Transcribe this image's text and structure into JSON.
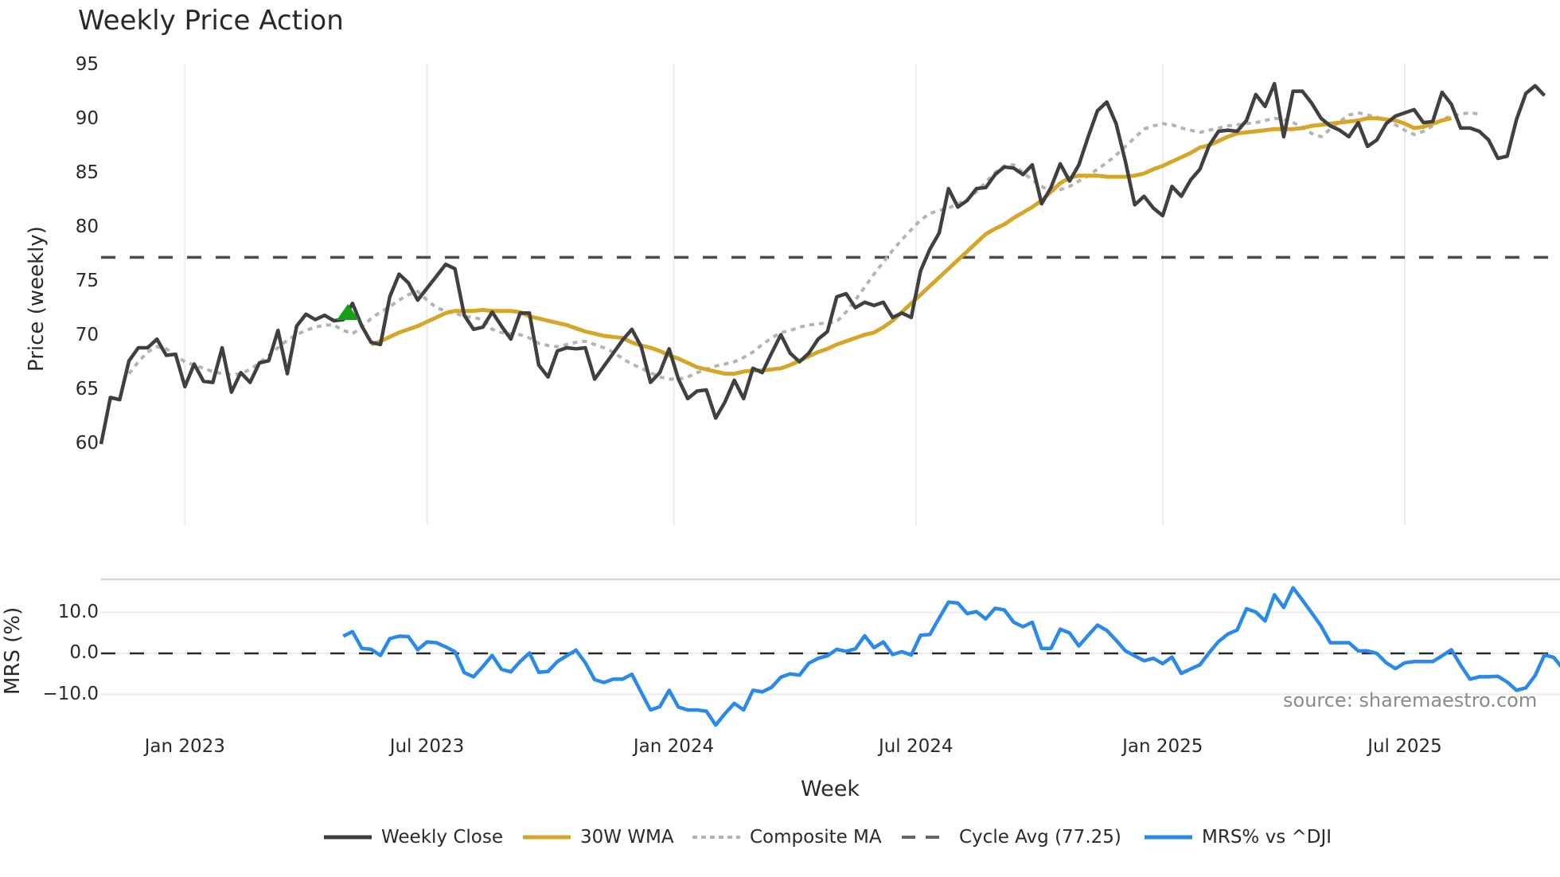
{
  "title": "Weekly Price Action",
  "source": "source: sharemaestro.com",
  "colors": {
    "weekly_close": "#404040",
    "wma": "#d4a62a",
    "composite": "#b4b4b4",
    "cycle_avg": "#4a4a4a",
    "mrs": "#2a8ae6",
    "signal": "#14a014",
    "grid": "#ececec"
  },
  "legend": [
    {
      "label": "Weekly Close",
      "style": "solid",
      "color": "#404040"
    },
    {
      "label": "30W WMA",
      "style": "solid",
      "color": "#d4a62a"
    },
    {
      "label": "Composite MA",
      "style": "dotted",
      "color": "#b4b4b4"
    },
    {
      "label": "Cycle Avg (77.25)",
      "style": "dashed",
      "color": "#4a4a4a"
    },
    {
      "label": "MRS% vs ^DJI",
      "style": "solid",
      "color": "#2a8ae6"
    }
  ],
  "chart_data": [
    {
      "type": "line",
      "title": "Weekly Price Action",
      "xlabel": "Week",
      "ylabel": "Price (weekly)",
      "ylim": [
        58.5,
        95
      ],
      "yticks": [
        95,
        90,
        85,
        80,
        75,
        70,
        65,
        60
      ],
      "xticks": [
        "Jan 2023",
        "Jul 2023",
        "Jan 2024",
        "Jul 2024",
        "Jan 2025",
        "Jul 2025"
      ],
      "xtick_index": [
        9,
        35,
        61.5,
        87.5,
        114,
        140
      ],
      "grid": "vertical",
      "horizontal_line": {
        "name": "Cycle Avg (77.25)",
        "value": 77.25
      },
      "signal_markers": [
        {
          "type": "buy-triangle",
          "index": 26.5,
          "value": 72.2
        }
      ],
      "series": [
        {
          "name": "Weekly Close",
          "start_index": 0,
          "values": [
            60.0,
            64.3,
            64.1,
            67.7,
            68.9,
            68.9,
            69.7,
            68.2,
            68.3,
            65.3,
            67.4,
            65.8,
            65.7,
            68.9,
            64.8,
            66.6,
            65.7,
            67.5,
            67.7,
            70.5,
            66.5,
            70.9,
            72.0,
            71.5,
            71.9,
            71.4,
            71.5,
            73.0,
            70.9,
            69.4,
            69.2,
            73.6,
            75.7,
            74.9,
            73.3,
            74.4,
            75.5,
            76.6,
            76.2,
            71.9,
            70.6,
            70.8,
            72.2,
            70.9,
            69.7,
            72.1,
            72.1,
            67.3,
            66.2,
            68.6,
            68.9,
            68.8,
            68.9,
            66.0,
            67.2,
            68.4,
            69.6,
            70.6,
            69.0,
            65.7,
            66.6,
            68.8,
            66.0,
            64.2,
            64.9,
            65.0,
            62.4,
            63.9,
            65.9,
            64.2,
            67.0,
            66.6,
            68.4,
            70.1,
            68.4,
            67.6,
            68.4,
            69.7,
            70.4,
            73.6,
            73.9,
            72.6,
            73.1,
            72.8,
            73.1,
            71.7,
            72.1,
            71.7,
            76.0,
            78.0,
            79.5,
            83.6,
            81.9,
            82.5,
            83.6,
            83.7,
            84.9,
            85.6,
            85.5,
            84.9,
            85.8,
            82.2,
            83.7,
            85.9,
            84.3,
            85.8,
            88.4,
            90.8,
            91.6,
            89.6,
            86.1,
            82.1,
            82.9,
            81.8,
            81.1,
            83.8,
            82.9,
            84.4,
            85.4,
            87.6,
            88.9,
            89.0,
            88.9,
            89.9,
            92.3,
            91.2,
            93.3,
            88.4,
            92.6,
            92.6,
            91.5,
            90.1,
            89.4,
            89.0,
            88.4,
            89.7,
            87.5,
            88.1,
            89.6,
            90.3,
            90.6,
            90.9,
            89.7,
            89.8,
            92.5,
            91.4,
            89.2,
            89.2,
            88.9,
            88.1,
            86.4,
            86.6,
            90.0,
            92.4,
            93.1,
            92.2
          ]
        },
        {
          "name": "30W WMA",
          "start_index": 29,
          "values": [
            69.2,
            69.5,
            69.9,
            70.3,
            70.6,
            70.9,
            71.3,
            71.7,
            72.1,
            72.3,
            72.3,
            72.3,
            72.4,
            72.3,
            72.3,
            72.3,
            72.2,
            71.8,
            71.6,
            71.4,
            71.2,
            71.0,
            70.7,
            70.4,
            70.2,
            70.0,
            69.9,
            69.8,
            69.4,
            69.1,
            68.9,
            68.6,
            68.2,
            67.9,
            67.5,
            67.1,
            66.9,
            66.7,
            66.5,
            66.5,
            66.7,
            66.8,
            66.8,
            66.9,
            67.0,
            67.3,
            67.7,
            68.1,
            68.5,
            68.8,
            69.2,
            69.5,
            69.8,
            70.1,
            70.3,
            70.8,
            71.4,
            72.2,
            73.0,
            73.8,
            74.6,
            75.4,
            76.2,
            77.0,
            77.8,
            78.6,
            79.4,
            79.9,
            80.3,
            80.9,
            81.4,
            81.9,
            82.5,
            83.3,
            84.1,
            84.6,
            84.8,
            84.8,
            84.8,
            84.7,
            84.7,
            84.7,
            84.8,
            85.0,
            85.4,
            85.7,
            86.1,
            86.5,
            86.9,
            87.4,
            87.6,
            88.0,
            88.4,
            88.7,
            88.8,
            88.9,
            89.0,
            89.1,
            89.1,
            89.1,
            89.2,
            89.4,
            89.5,
            89.6,
            89.7,
            89.8,
            89.9,
            90.1,
            90.1,
            90.0,
            89.9,
            89.6,
            89.2,
            89.3,
            89.6,
            89.9,
            90.1
          ]
        },
        {
          "name": "Composite MA",
          "start_index": 3,
          "values": [
            66.5,
            67.6,
            68.5,
            69.0,
            68.8,
            68.2,
            67.6,
            67.3,
            67.0,
            66.7,
            66.5,
            66.4,
            66.5,
            66.9,
            67.5,
            68.2,
            68.9,
            69.6,
            70.1,
            70.5,
            70.8,
            71.0,
            71.0,
            70.5,
            70.2,
            70.8,
            71.6,
            72.2,
            72.7,
            73.3,
            73.8,
            74.1,
            73.3,
            72.6,
            72.3,
            72.1,
            71.8,
            71.7,
            71.5,
            70.6,
            70.3,
            70.2,
            70.1,
            69.8,
            69.3,
            69.1,
            69.0,
            69.2,
            69.4,
            69.5,
            69.2,
            68.9,
            68.5,
            67.9,
            67.4,
            67.0,
            66.6,
            66.2,
            66.0,
            66.0,
            66.2,
            66.6,
            66.9,
            67.2,
            67.4,
            67.6,
            68.0,
            68.5,
            69.2,
            69.8,
            70.3,
            70.5,
            70.8,
            71.0,
            71.1,
            71.2,
            71.3,
            72.2,
            73.3,
            74.5,
            75.7,
            76.8,
            77.9,
            78.9,
            79.8,
            80.7,
            81.3,
            81.6,
            81.8,
            82.2,
            82.6,
            83.3,
            84.2,
            85.1,
            85.7,
            85.8,
            85.1,
            84.4,
            83.8,
            83.4,
            83.5,
            83.8,
            84.3,
            84.8,
            85.4,
            86.0,
            86.7,
            87.5,
            88.3,
            89.1,
            89.4,
            89.6,
            89.5,
            89.2,
            89.0,
            88.8,
            89.0,
            89.2,
            89.4,
            89.5,
            89.6,
            89.7,
            89.9,
            90.1,
            90.0,
            89.7,
            89.3,
            88.7,
            88.4,
            89.1,
            89.8,
            90.4,
            90.6,
            90.4,
            90.2,
            89.9,
            89.5,
            89.0,
            88.6,
            88.9,
            89.4,
            90.0,
            90.3,
            90.5,
            90.6,
            90.5
          ]
        }
      ]
    },
    {
      "type": "line",
      "ylabel": "MRS (%)",
      "ylim": [
        -19,
        22
      ],
      "yticks": [
        "10.0",
        "0.0",
        "−10.0"
      ],
      "horizontal_line": {
        "name": "zero",
        "value": 0
      },
      "series": [
        {
          "name": "MRS% vs ^DJI",
          "start_index": 26,
          "values": [
            4.2,
            5.3,
            1.2,
            1.0,
            -0.5,
            3.6,
            4.2,
            4.1,
            0.9,
            2.8,
            2.6,
            1.6,
            0.4,
            -4.7,
            -5.7,
            -3.2,
            -0.5,
            -3.9,
            -4.5,
            -2.0,
            0.1,
            -4.6,
            -4.4,
            -2.0,
            -0.6,
            0.8,
            -2.3,
            -6.4,
            -7.1,
            -6.3,
            -6.3,
            -5.1,
            -9.5,
            -13.8,
            -13.0,
            -9.0,
            -13.1,
            -13.8,
            -13.8,
            -14.1,
            -17.5,
            -14.7,
            -12.2,
            -13.8,
            -9.0,
            -9.4,
            -8.3,
            -5.8,
            -5.0,
            -5.3,
            -2.4,
            -1.2,
            -0.6,
            1.0,
            0.5,
            1.1,
            4.3,
            1.4,
            2.8,
            -0.3,
            0.4,
            -0.4,
            4.4,
            4.6,
            8.6,
            12.5,
            12.3,
            9.7,
            10.2,
            8.4,
            11.0,
            10.6,
            7.6,
            6.5,
            7.6,
            1.2,
            1.2,
            5.9,
            5.0,
            1.8,
            4.4,
            6.9,
            5.6,
            3.2,
            0.6,
            -0.6,
            -1.8,
            -1.2,
            -2.5,
            -0.9,
            -4.9,
            -3.8,
            -2.8,
            0.2,
            2.9,
            4.7,
            5.7,
            10.9,
            10.1,
            7.9,
            14.3,
            11.2,
            16.0,
            13.0,
            9.9,
            6.7,
            2.6,
            2.6,
            2.6,
            0.6,
            0.6,
            0.0,
            -2.3,
            -3.7,
            -2.3,
            -2.0,
            -2.0,
            -2.0,
            -0.6,
            0.9,
            -2.9,
            -6.3,
            -5.7,
            -5.7,
            -5.6,
            -7.0,
            -9.0,
            -8.4,
            -5.4,
            -0.4,
            -1.0,
            -3.8
          ]
        }
      ]
    }
  ]
}
